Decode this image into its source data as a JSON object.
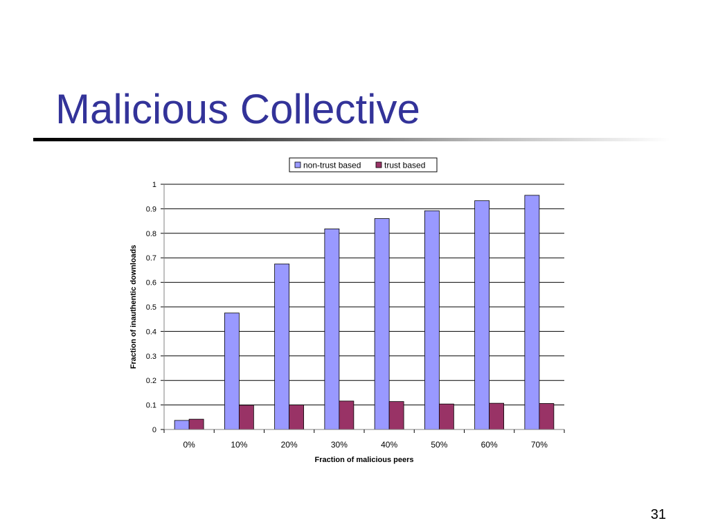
{
  "slide": {
    "title": "Malicious Collective",
    "page_number": "31"
  },
  "colors": {
    "title": "#333399",
    "non_trust": "#9999FF",
    "trust": "#993366",
    "gridline": "#000000"
  },
  "chart_data": {
    "type": "bar",
    "title": "",
    "xlabel": "Fraction of malicious peers",
    "ylabel": "Fraction of inauthentic downloads",
    "categories": [
      "0%",
      "10%",
      "20%",
      "30%",
      "40%",
      "50%",
      "60%",
      "70%"
    ],
    "series": [
      {
        "name": "non-trust based",
        "values": [
          0.037,
          0.475,
          0.675,
          0.818,
          0.86,
          0.892,
          0.933,
          0.955
        ]
      },
      {
        "name": "trust based",
        "values": [
          0.042,
          0.099,
          0.1,
          0.116,
          0.114,
          0.104,
          0.107,
          0.106
        ]
      }
    ],
    "ylim": [
      0,
      1
    ],
    "yticks": [
      "0",
      "0.1",
      "0.2",
      "0.3",
      "0.4",
      "0.5",
      "0.6",
      "0.7",
      "0.8",
      "0.9",
      "1"
    ],
    "grid": true,
    "legend_position": "top-center"
  }
}
